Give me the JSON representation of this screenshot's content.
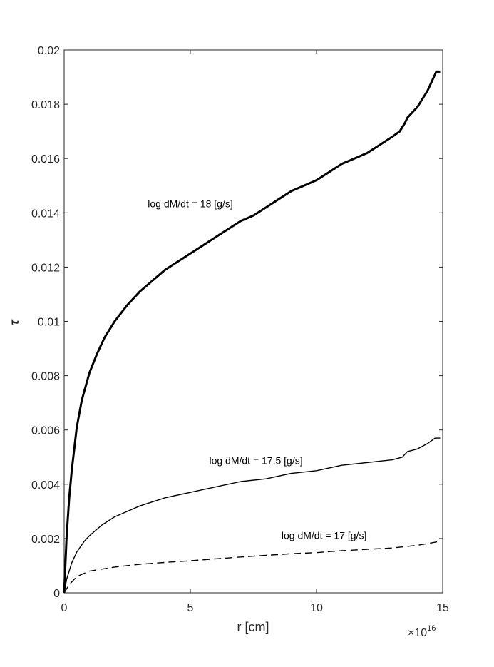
{
  "chart_data": {
    "type": "line",
    "xlabel": "r  [cm]",
    "ylabel": "τ",
    "x_multiplier": "×10",
    "x_multiplier_exp": "16",
    "xlim": [
      0,
      15
    ],
    "ylim": [
      0,
      0.02
    ],
    "xticks": [
      0,
      5,
      10,
      15
    ],
    "xtick_labels": [
      "0",
      "5",
      "10",
      "15"
    ],
    "yticks": [
      0,
      0.002,
      0.004,
      0.006,
      0.008,
      0.01,
      0.012,
      0.014,
      0.016,
      0.018,
      0.02
    ],
    "ytick_labels": [
      "0",
      "0.002",
      "0.004",
      "0.006",
      "0.008",
      "0.01",
      "0.012",
      "0.014",
      "0.016",
      "0.018",
      "0.02"
    ],
    "grid": false,
    "series": [
      {
        "name": "log dM/dt = 18 [g/s]",
        "style": "solid-thick",
        "color": "#000000",
        "x": [
          0,
          0.1,
          0.2,
          0.3,
          0.5,
          0.7,
          1.0,
          1.3,
          1.6,
          2.0,
          2.5,
          3.0,
          3.5,
          4.0,
          4.5,
          5.0,
          5.5,
          6.0,
          6.5,
          7.0,
          7.5,
          8.0,
          8.5,
          9.0,
          9.5,
          10.0,
          10.5,
          11.0,
          11.5,
          12.0,
          12.5,
          13.0,
          13.3,
          13.5,
          13.6,
          13.8,
          14.0,
          14.2,
          14.4,
          14.6,
          14.75,
          14.9
        ],
        "y": [
          0,
          0.0021,
          0.0035,
          0.0045,
          0.0061,
          0.0071,
          0.0081,
          0.0088,
          0.0094,
          0.01,
          0.0106,
          0.0111,
          0.0115,
          0.0119,
          0.0122,
          0.0125,
          0.0128,
          0.0131,
          0.0134,
          0.0137,
          0.0139,
          0.0142,
          0.0145,
          0.0148,
          0.015,
          0.0152,
          0.0155,
          0.0158,
          0.016,
          0.0162,
          0.0165,
          0.0168,
          0.017,
          0.0173,
          0.0175,
          0.0177,
          0.0179,
          0.0182,
          0.0185,
          0.0189,
          0.0192,
          0.0192
        ]
      },
      {
        "name": "log dM/dt = 17.5 [g/s]",
        "style": "solid-thin",
        "color": "#000000",
        "x": [
          0,
          0.1,
          0.3,
          0.5,
          0.8,
          1.0,
          1.5,
          2.0,
          2.5,
          3.0,
          4.0,
          5.0,
          6.0,
          7.0,
          8.0,
          9.0,
          10.0,
          11.0,
          12.0,
          13.0,
          13.4,
          13.6,
          14.0,
          14.4,
          14.7,
          14.9
        ],
        "y": [
          0,
          0.0005,
          0.0011,
          0.0015,
          0.0019,
          0.0021,
          0.0025,
          0.0028,
          0.003,
          0.0032,
          0.0035,
          0.0037,
          0.0039,
          0.0041,
          0.0042,
          0.0044,
          0.0045,
          0.0047,
          0.0048,
          0.0049,
          0.005,
          0.0052,
          0.0053,
          0.0055,
          0.0057,
          0.0057
        ]
      },
      {
        "name": "log dM/dt = 17  [g/s]",
        "style": "dashed",
        "color": "#000000",
        "x": [
          0,
          0.2,
          0.5,
          1.0,
          2.0,
          3.0,
          4.0,
          5.0,
          6.0,
          7.0,
          8.0,
          9.0,
          10.0,
          11.0,
          12.0,
          13.0,
          13.5,
          14.0,
          14.5,
          14.9
        ],
        "y": [
          0,
          0.0003,
          0.0006,
          0.0008,
          0.00095,
          0.00105,
          0.00112,
          0.00118,
          0.00125,
          0.00132,
          0.00138,
          0.00144,
          0.00148,
          0.00155,
          0.0016,
          0.00165,
          0.0017,
          0.00175,
          0.00183,
          0.0019
        ]
      }
    ],
    "annotations": [
      {
        "text": "log dM/dt = 18 [g/s]",
        "x": 5.0,
        "y": 0.0142
      },
      {
        "text": "log dM/dt = 17.5 [g/s]",
        "x": 7.6,
        "y": 0.00475
      },
      {
        "text": "log dM/dt = 17  [g/s]",
        "x": 10.3,
        "y": 0.00198
      }
    ]
  }
}
